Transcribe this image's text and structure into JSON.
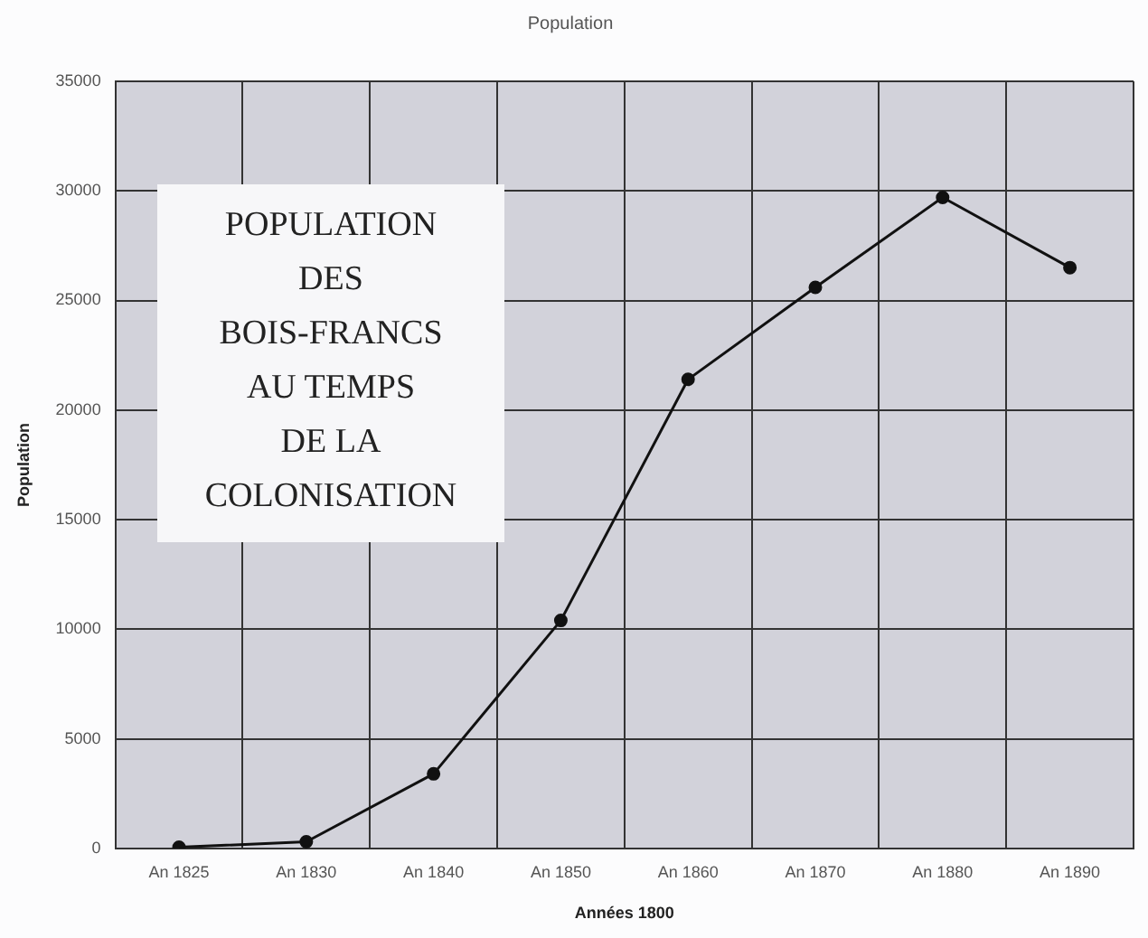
{
  "chart_data": {
    "type": "line",
    "title": "Population",
    "xlabel": "Années 1800",
    "ylabel": "Population",
    "categories": [
      "An 1825",
      "An 1830",
      "An 1840",
      "An 1850",
      "An 1860",
      "An 1870",
      "An 1880",
      "An 1890"
    ],
    "series": [
      {
        "color": "#111111",
        "values": [
          50,
          300,
          3400,
          10400,
          21400,
          25600,
          29700,
          26500
        ]
      }
    ],
    "ylim": [
      0,
      35000
    ],
    "yticks": [
      0,
      5000,
      10000,
      15000,
      20000,
      25000,
      30000,
      35000
    ],
    "grid": true,
    "legend": false,
    "marker": "circle",
    "line_style": "solid",
    "annotations": [
      "POPULATION\nDES\nBOIS-FRANCS\nAU TEMPS\nDE LA\nCOLONISATION"
    ]
  }
}
